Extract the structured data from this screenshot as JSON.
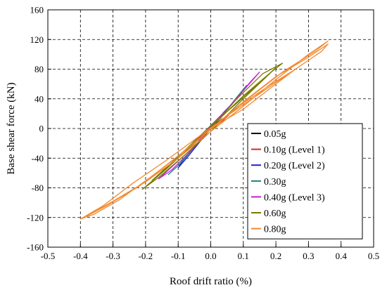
{
  "chart_data": {
    "type": "line",
    "title": "",
    "xlabel": "Roof drift ratio (%)",
    "ylabel": "Base shear force (kN)",
    "xlim": [
      -0.5,
      0.5
    ],
    "ylim": [
      -160,
      160
    ],
    "x_ticks": [
      -0.5,
      -0.4,
      -0.3,
      -0.2,
      -0.1,
      0.0,
      0.1,
      0.2,
      0.3,
      0.4,
      0.5
    ],
    "x_tick_labels": [
      "-0.5",
      "-0.4",
      "-0.3",
      "-0.2",
      "-0.1",
      "0.0",
      "0.1",
      "0.2",
      "0.3",
      "0.4",
      "0.5"
    ],
    "y_ticks": [
      160,
      120,
      80,
      40,
      0,
      -40,
      -80,
      -120,
      -160
    ],
    "y_tick_labels": [
      "160",
      "120",
      "80",
      "40",
      "0",
      "-40",
      "-80",
      "-120",
      "-160"
    ],
    "grid": true,
    "legend_position": "bottom-right",
    "series": [
      {
        "name": "0.05g",
        "color": "#000000",
        "points": [
          [
            0,
            0
          ],
          [
            0.02,
            8
          ],
          [
            0.035,
            13
          ],
          [
            0.02,
            6
          ],
          [
            0,
            0
          ],
          [
            -0.02,
            -7
          ],
          [
            -0.03,
            -11
          ],
          [
            -0.015,
            -5
          ],
          [
            0,
            0
          ]
        ]
      },
      {
        "name": "0.10g (Level 1)",
        "color": "#d62728",
        "points": [
          [
            0,
            0
          ],
          [
            0.03,
            10
          ],
          [
            0.055,
            18
          ],
          [
            0.03,
            8
          ],
          [
            0,
            -1
          ],
          [
            -0.03,
            -10
          ],
          [
            -0.055,
            -19
          ],
          [
            -0.03,
            -9
          ],
          [
            0,
            0
          ]
        ]
      },
      {
        "name": "0.20g (Level 2)",
        "color": "#1f1fd6",
        "points": [
          [
            0,
            0
          ],
          [
            0.04,
            22
          ],
          [
            0.08,
            40
          ],
          [
            0.1,
            52
          ],
          [
            0.07,
            36
          ],
          [
            0.03,
            14
          ],
          [
            0,
            2
          ],
          [
            -0.04,
            -20
          ],
          [
            -0.08,
            -40
          ],
          [
            -0.1,
            -53
          ],
          [
            -0.07,
            -38
          ],
          [
            -0.03,
            -16
          ],
          [
            0,
            0
          ]
        ]
      },
      {
        "name": "0.30g",
        "color": "#17807e",
        "points": [
          [
            0,
            0
          ],
          [
            0.05,
            25
          ],
          [
            0.09,
            46
          ],
          [
            0.11,
            58
          ],
          [
            0.08,
            42
          ],
          [
            0.04,
            20
          ],
          [
            0,
            3
          ],
          [
            -0.05,
            -24
          ],
          [
            -0.1,
            -50
          ],
          [
            -0.13,
            -62
          ],
          [
            -0.09,
            -46
          ],
          [
            -0.04,
            -20
          ],
          [
            0,
            0
          ]
        ]
      },
      {
        "name": "0.40g (Level 3)",
        "color": "#c41fd6",
        "points": [
          [
            0,
            0
          ],
          [
            0.06,
            30
          ],
          [
            0.12,
            62
          ],
          [
            0.15,
            76
          ],
          [
            0.11,
            56
          ],
          [
            0.05,
            26
          ],
          [
            0,
            4
          ],
          [
            -0.06,
            -30
          ],
          [
            -0.12,
            -56
          ],
          [
            -0.16,
            -68
          ],
          [
            -0.12,
            -52
          ],
          [
            -0.06,
            -28
          ],
          [
            0,
            0
          ]
        ]
      },
      {
        "name": "0.60g",
        "color": "#7a7a00",
        "points": [
          [
            0,
            0
          ],
          [
            0.08,
            40
          ],
          [
            0.16,
            74
          ],
          [
            0.22,
            88
          ],
          [
            0.18,
            74
          ],
          [
            0.1,
            44
          ],
          [
            0.02,
            10
          ],
          [
            -0.06,
            -24
          ],
          [
            -0.14,
            -56
          ],
          [
            -0.21,
            -82
          ],
          [
            -0.16,
            -66
          ],
          [
            -0.08,
            -36
          ],
          [
            0,
            -4
          ],
          [
            0.1,
            40
          ],
          [
            0.2,
            82
          ],
          [
            0.16,
            66
          ],
          [
            0.08,
            34
          ],
          [
            0,
            4
          ],
          [
            -0.1,
            -38
          ],
          [
            -0.18,
            -70
          ],
          [
            -0.12,
            -48
          ],
          [
            0,
            0
          ]
        ]
      },
      {
        "name": "0.80g",
        "color": "#f28a30",
        "points": [
          [
            0,
            0
          ],
          [
            0.1,
            36
          ],
          [
            0.2,
            70
          ],
          [
            0.3,
            96
          ],
          [
            0.36,
            114
          ],
          [
            0.34,
            104
          ],
          [
            0.26,
            80
          ],
          [
            0.16,
            50
          ],
          [
            0.06,
            20
          ],
          [
            -0.04,
            -12
          ],
          [
            -0.14,
            -44
          ],
          [
            -0.24,
            -74
          ],
          [
            -0.33,
            -104
          ],
          [
            -0.4,
            -122
          ],
          [
            -0.36,
            -116
          ],
          [
            -0.28,
            -96
          ],
          [
            -0.18,
            -64
          ],
          [
            -0.08,
            -30
          ],
          [
            0.02,
            6
          ],
          [
            0.12,
            42
          ],
          [
            0.22,
            76
          ],
          [
            0.32,
            104
          ],
          [
            0.36,
            118
          ],
          [
            0.3,
            100
          ],
          [
            0.2,
            66
          ],
          [
            0.1,
            30
          ],
          [
            0,
            -4
          ],
          [
            -0.1,
            -40
          ],
          [
            -0.2,
            -72
          ],
          [
            -0.3,
            -98
          ],
          [
            -0.38,
            -118
          ],
          [
            -0.32,
            -104
          ],
          [
            -0.22,
            -78
          ],
          [
            -0.12,
            -44
          ],
          [
            -0.02,
            -8
          ],
          [
            0.08,
            28
          ],
          [
            0.18,
            58
          ],
          [
            0.26,
            80
          ],
          [
            0.2,
            60
          ],
          [
            0.1,
            26
          ],
          [
            0,
            0
          ]
        ]
      }
    ]
  }
}
